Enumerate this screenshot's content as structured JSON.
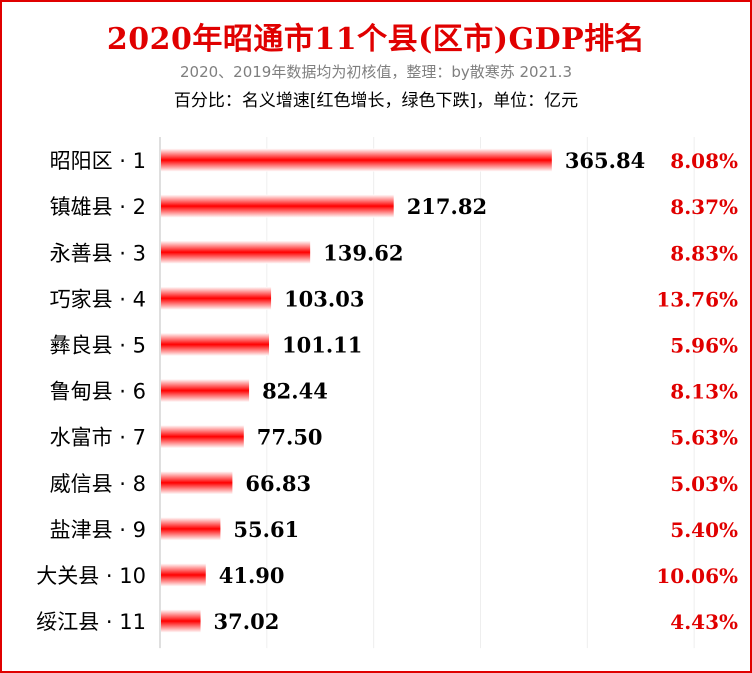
{
  "chart_data": {
    "type": "bar",
    "orientation": "horizontal",
    "title": "2020年昭通市11个县(区市)GDP排名",
    "subtitle": "2020、2019年数据均为初核值，整理：by散寒苏  2021.3",
    "note": "百分比：名义增速[红色增长，绿色下跌]，单位：亿元",
    "categories": [
      "昭阳区 · 1",
      "镇雄县 · 2",
      "永善县 · 3",
      "巧家县 · 4",
      "彝良县 · 5",
      "鲁甸县 · 6",
      "水富市 · 7",
      "威信县 · 8",
      "盐津县 · 9",
      "大关县 · 10",
      "绥江县 · 11"
    ],
    "values": [
      365.84,
      217.82,
      139.62,
      103.03,
      101.11,
      82.44,
      77.5,
      66.83,
      55.61,
      41.9,
      37.02
    ],
    "value_labels": [
      "365.84",
      "217.82",
      "139.62",
      "103.03",
      "101.11",
      "82.44",
      "77.50",
      "66.83",
      "55.61",
      "41.90",
      "37.02"
    ],
    "growth_labels": [
      "8.08%",
      "8.37%",
      "8.83%",
      "13.76%",
      "5.96%",
      "8.13%",
      "5.63%",
      "5.03%",
      "5.40%",
      "10.06%",
      "4.43%"
    ],
    "xlim": [
      0,
      500
    ],
    "grid": true,
    "colors": {
      "bar": "#ff0000",
      "growth_positive": "#e00000",
      "frame": "#e00000"
    }
  }
}
